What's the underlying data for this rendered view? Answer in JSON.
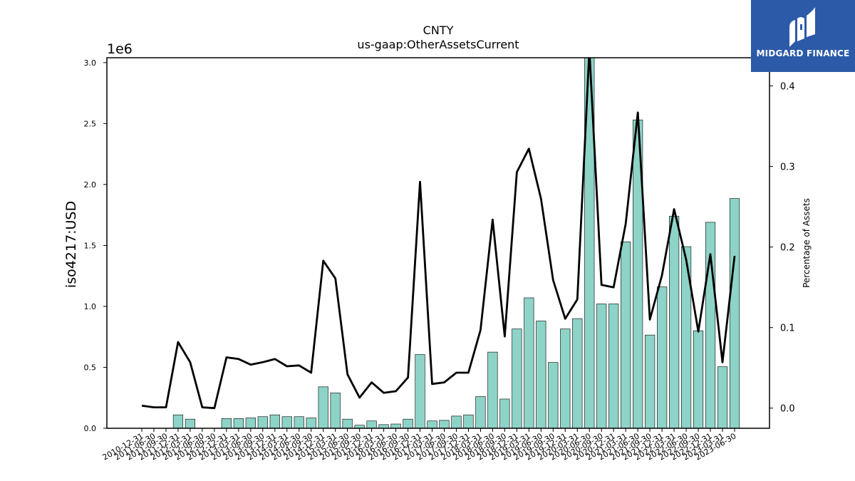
{
  "brand": {
    "name": "MIDGARD FINANCE",
    "bg_color": "#2c5aa8"
  },
  "chart_data": {
    "type": "bar+line",
    "title": "CNTY",
    "subtitle": "us-gaap:OtherAssetsCurrent",
    "ylabel": "iso4217:USD",
    "y_offset_label": "1e6",
    "y2label": "Percentage of Assets",
    "ylim": [
      0,
      3040000
    ],
    "y2lim": [
      -0.025,
      0.435
    ],
    "yticks": [
      "0.0",
      "0.5",
      "1.0",
      "1.5",
      "2.0",
      "2.5",
      "3.0"
    ],
    "y2ticks": [
      "0.0",
      "0.1",
      "0.2",
      "0.3",
      "0.4"
    ],
    "bar_color": "#8dd3c7",
    "line_color": "#000000",
    "categories": [
      "2010-12-31",
      "2011-06-30",
      "2011-09-30",
      "2011-12-31",
      "2012-03-31",
      "2012-06-30",
      "2012-09-30",
      "2012-12-31",
      "2013-03-31",
      "2013-06-30",
      "2013-09-30",
      "2013-12-31",
      "2014-03-31",
      "2014-06-30",
      "2014-09-30",
      "2014-12-31",
      "2015-03-31",
      "2015-06-30",
      "2015-09-30",
      "2015-12-31",
      "2016-03-31",
      "2016-06-30",
      "2016-09-30",
      "2016-12-31",
      "2017-03-31",
      "2017-06-30",
      "2017-09-30",
      "2017-12-31",
      "2018-03-31",
      "2018-06-30",
      "2018-09-30",
      "2018-12-31",
      "2019-03-31",
      "2019-06-30",
      "2019-09-30",
      "2019-12-31",
      "2020-03-31",
      "2020-06-30",
      "2020-09-30",
      "2020-12-31",
      "2021-03-31",
      "2021-06-30",
      "2021-09-30",
      "2021-12-31",
      "2022-03-31",
      "2022-06-30",
      "2022-09-30",
      "2022-12-31",
      "2023-03-31",
      "2023-06-30"
    ],
    "bar_values": [
      0,
      0,
      0,
      110000,
      75000,
      0,
      0,
      80000,
      80000,
      85000,
      95000,
      110000,
      95000,
      95000,
      85000,
      340000,
      290000,
      75000,
      25000,
      60000,
      30000,
      35000,
      75000,
      605000,
      60000,
      65000,
      100000,
      110000,
      260000,
      625000,
      240000,
      815000,
      1070000,
      880000,
      540000,
      815000,
      900000,
      3070000,
      1020000,
      1020000,
      1530000,
      2530000,
      765000,
      1160000,
      1740000,
      1490000,
      800000,
      1690000,
      505000,
      1885000
    ],
    "line_values": [
      0.003,
      0.001,
      0.001,
      0.082,
      0.057,
      0.001,
      0.0,
      0.063,
      0.061,
      0.054,
      0.057,
      0.061,
      0.052,
      0.053,
      0.044,
      0.183,
      0.161,
      0.042,
      0.013,
      0.032,
      0.019,
      0.021,
      0.038,
      0.281,
      0.03,
      0.032,
      0.044,
      0.044,
      0.097,
      0.234,
      0.089,
      0.293,
      0.322,
      0.26,
      0.159,
      0.111,
      0.135,
      0.445,
      0.153,
      0.15,
      0.229,
      0.367,
      0.11,
      0.165,
      0.247,
      0.184,
      0.095,
      0.191,
      0.057,
      0.189
    ]
  }
}
